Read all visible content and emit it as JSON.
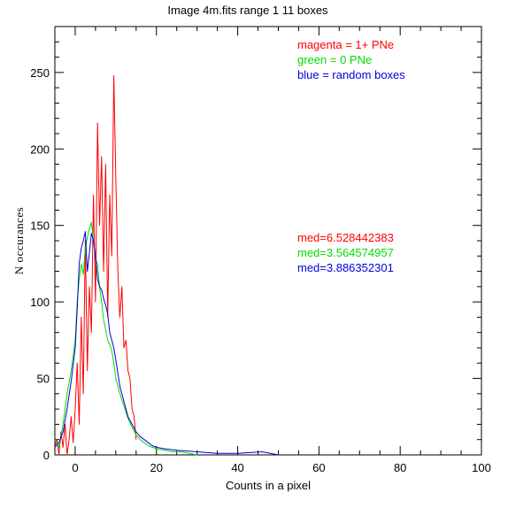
{
  "chart_data": {
    "type": "line",
    "title": "Image 4m.fits   range 1    11 boxes",
    "xlabel": "Counts in a pixel",
    "ylabel": "N occurances",
    "xlim": [
      -5,
      100
    ],
    "ylim": [
      0,
      280
    ],
    "x_ticks": [
      0,
      20,
      40,
      60,
      80,
      100
    ],
    "y_ticks": [
      0,
      50,
      100,
      150,
      200,
      250
    ],
    "grid": false,
    "legend": [
      {
        "text": "magenta = 1+ PNe",
        "color": "#ff0000"
      },
      {
        "text": "green = 0 PNe",
        "color": "#00dd00"
      },
      {
        "text": "blue = random boxes",
        "color": "#0000dd"
      }
    ],
    "medians": [
      {
        "text": "med=6.528442383",
        "color": "#ff0000"
      },
      {
        "text": "med=3.564574957",
        "color": "#00dd00"
      },
      {
        "text": "med=3.886352301",
        "color": "#0000dd"
      }
    ],
    "series": [
      {
        "color": "#ff0000",
        "x": [
          -5,
          -4.5,
          -4,
          -3.5,
          -3,
          -2.5,
          -2,
          -1.5,
          -1,
          -0.5,
          0,
          0.5,
          1,
          1.5,
          2,
          2.5,
          3,
          3.5,
          4,
          4.5,
          5,
          5.5,
          6,
          6.5,
          7,
          7.5,
          8,
          8.5,
          9,
          9.5,
          10,
          10.5,
          11,
          11.5,
          12,
          12.5,
          13,
          13.5,
          14,
          14.5,
          15
        ],
        "y": [
          5,
          10,
          0,
          15,
          5,
          20,
          0,
          10,
          25,
          8,
          30,
          60,
          20,
          90,
          40,
          140,
          55,
          110,
          80,
          170,
          100,
          217,
          150,
          195,
          120,
          190,
          90,
          170,
          130,
          248,
          180,
          120,
          90,
          110,
          70,
          75,
          55,
          50,
          30,
          25,
          10
        ]
      },
      {
        "color": "#00dd00",
        "x": [
          -5,
          -4,
          -3,
          -2,
          -1,
          0,
          0.5,
          1,
          1.5,
          2,
          2.5,
          3,
          3.5,
          4,
          4.5,
          5,
          5.5,
          6,
          6.5,
          7,
          7.5,
          8,
          8.5,
          9,
          9.5,
          10,
          11,
          12,
          13,
          14,
          15,
          16,
          17,
          18,
          19,
          20,
          22,
          24,
          26,
          28,
          30
        ],
        "y": [
          10,
          5,
          20,
          40,
          55,
          75,
          100,
          115,
          125,
          118,
          135,
          142,
          148,
          152,
          140,
          128,
          125,
          110,
          100,
          88,
          82,
          75,
          72,
          68,
          60,
          50,
          40,
          32,
          24,
          18,
          13,
          10,
          8,
          6,
          5,
          4,
          3,
          2,
          2,
          1,
          0
        ]
      },
      {
        "color": "#0000dd",
        "x": [
          -5,
          -4,
          -3,
          -2,
          -1,
          0,
          0.5,
          1,
          1.5,
          2,
          2.5,
          3,
          3.5,
          4,
          4.5,
          5,
          5.5,
          6,
          6.5,
          7,
          7.5,
          8,
          8.5,
          9,
          9.5,
          10,
          11,
          12,
          13,
          14,
          15,
          16,
          17,
          18,
          19,
          20,
          22,
          25,
          30,
          35,
          40,
          46,
          50
        ],
        "y": [
          5,
          8,
          15,
          30,
          48,
          70,
          95,
          125,
          135,
          140,
          146,
          120,
          132,
          145,
          140,
          130,
          115,
          110,
          108,
          102,
          98,
          92,
          80,
          75,
          70,
          62,
          45,
          35,
          25,
          20,
          15,
          12,
          10,
          8,
          6,
          5,
          4,
          3,
          2,
          1,
          1,
          2,
          0
        ]
      }
    ]
  }
}
